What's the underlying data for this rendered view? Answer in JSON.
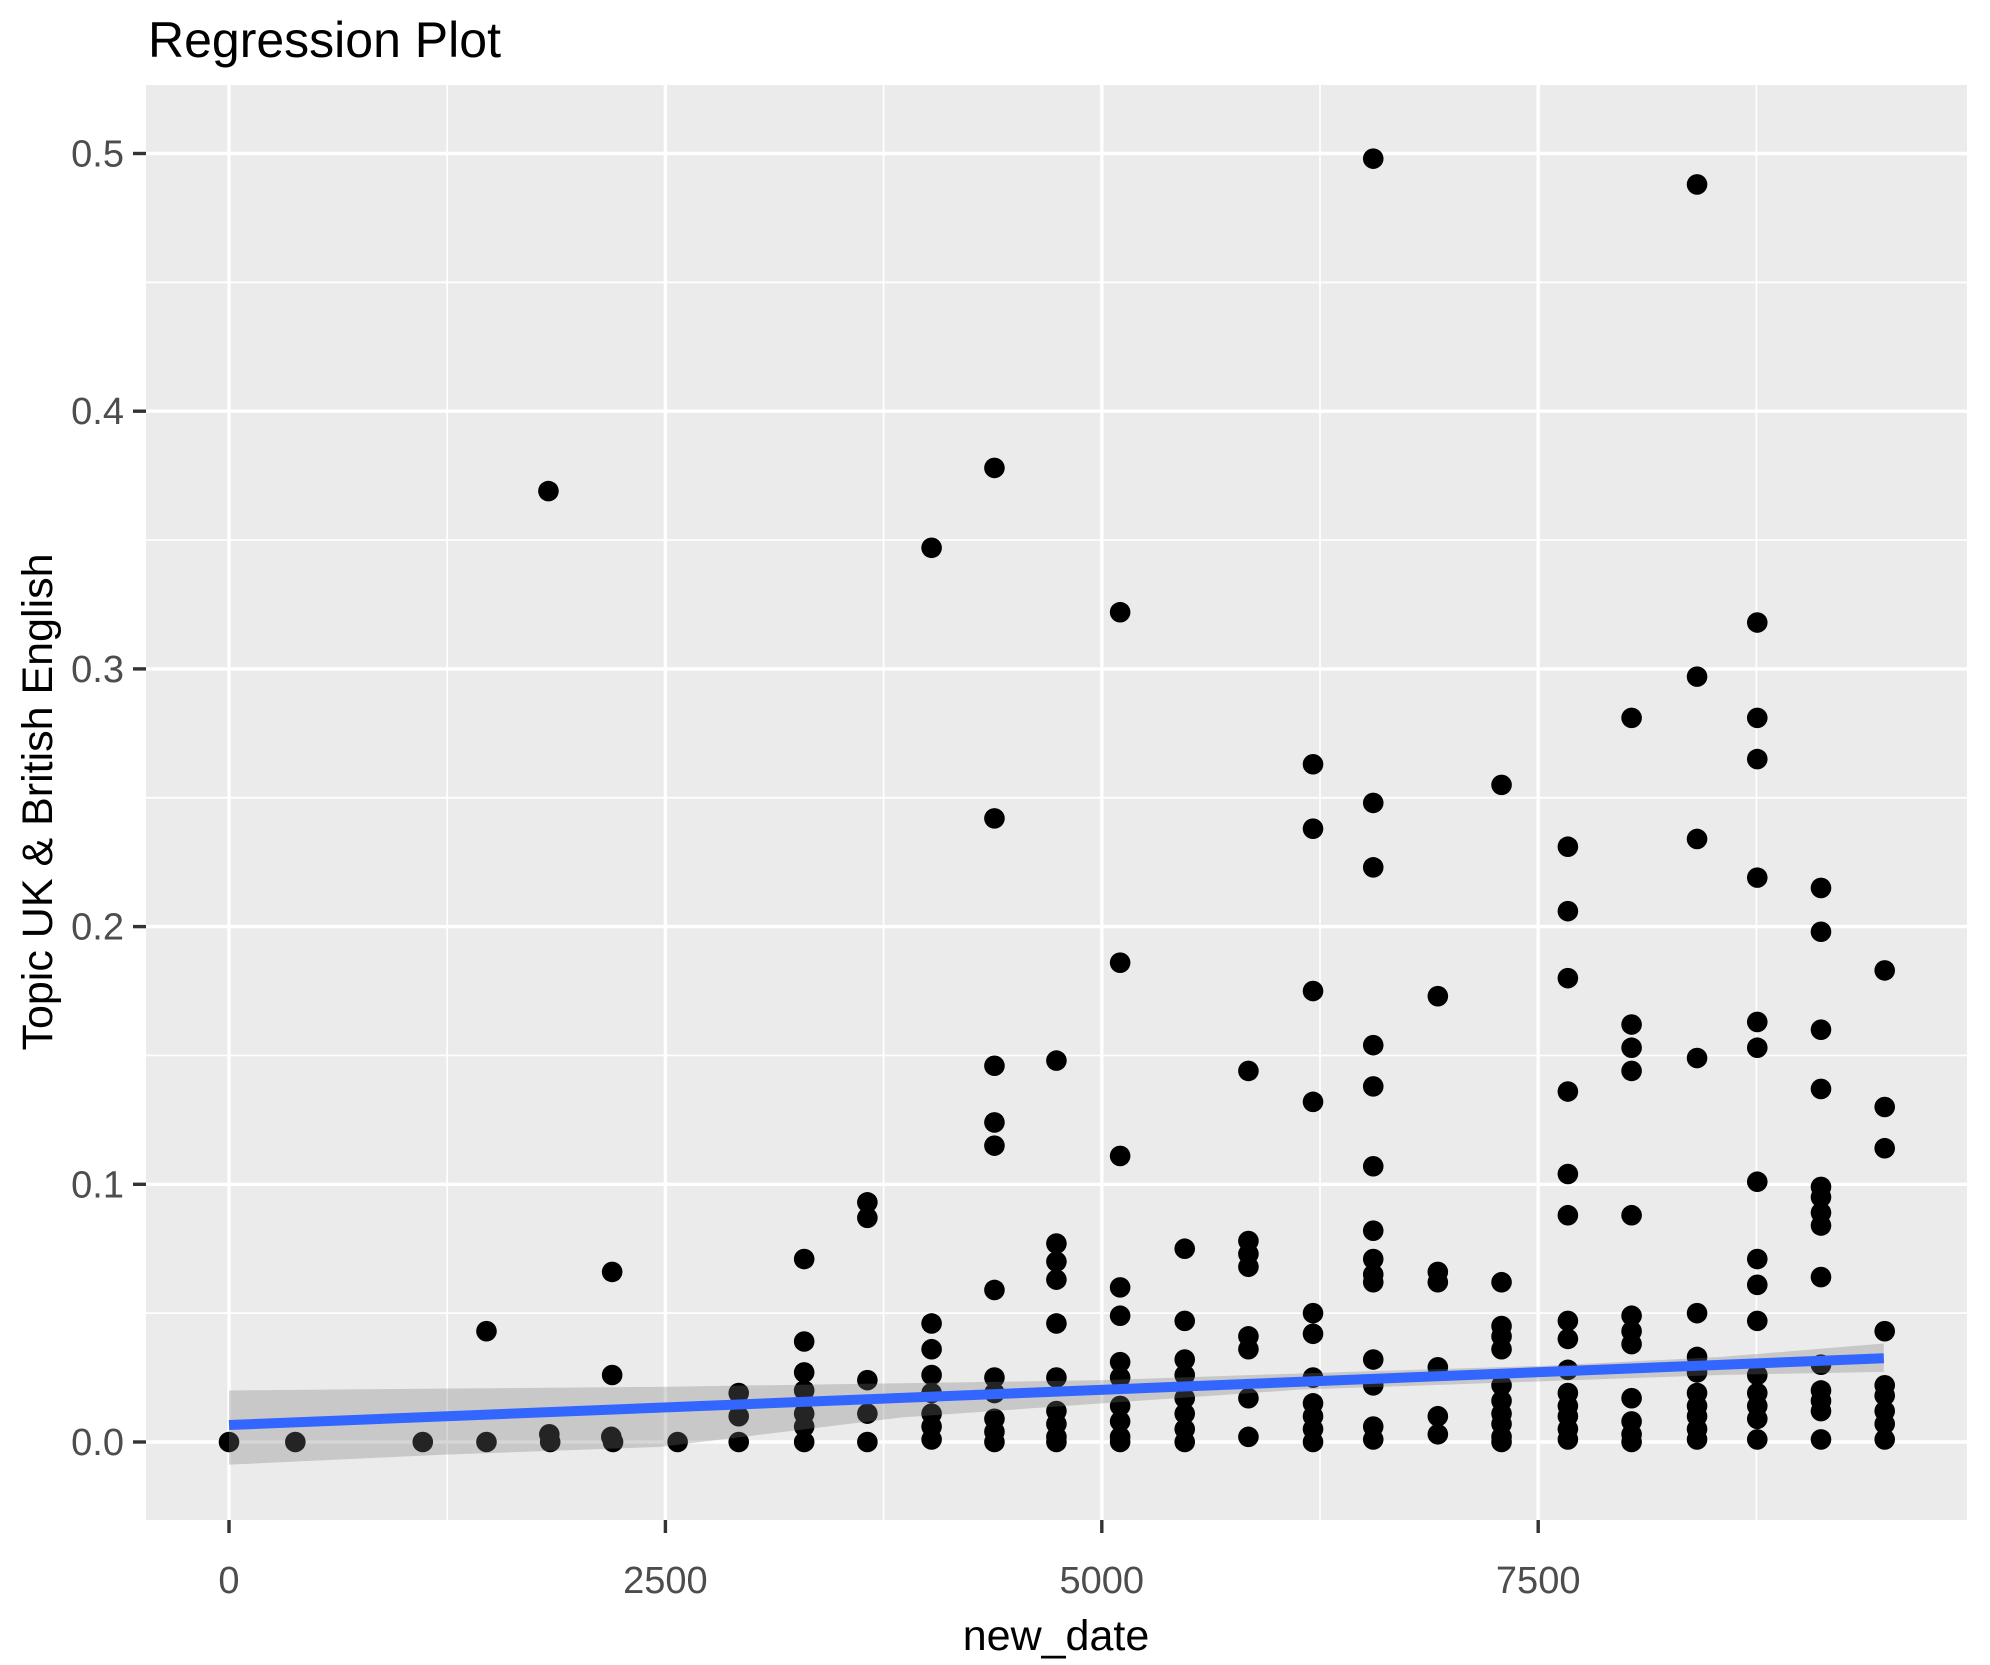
{
  "chart_data": {
    "type": "scatter",
    "title": "Regression Plot",
    "xlabel": "new_date",
    "ylabel": "Topic UK & British English",
    "x_ticks": [
      0,
      2500,
      5000,
      7500
    ],
    "x_tick_labels": [
      "0",
      "2500",
      "5000",
      "7500"
    ],
    "x_minor": [
      1250,
      3750,
      6250,
      8750
    ],
    "y_ticks": [
      0.0,
      0.1,
      0.2,
      0.3,
      0.4,
      0.5
    ],
    "y_tick_labels": [
      "0.0",
      "0.1",
      "0.2",
      "0.3",
      "0.4",
      "0.5"
    ],
    "y_minor": [
      0.05,
      0.15,
      0.25,
      0.35,
      0.45
    ],
    "xlim": [
      -474,
      9954
    ],
    "ylim": [
      -0.0287,
      0.5266
    ],
    "grid": true,
    "legend": "none",
    "colors": {
      "point": "#000000",
      "regression_line": "#3366FF",
      "ci_band": "rgba(120,120,120,0.30)",
      "panel_background": "#EBEBEB",
      "gridline": "#FFFFFF",
      "tick_mark": "#333333",
      "tick_text": "#4D4D4D"
    },
    "regression_line": {
      "x": [
        0,
        9480
      ],
      "y": [
        0.0066,
        0.0325
      ]
    },
    "ci_band": {
      "top": [
        [
          0,
          0.02
        ],
        [
          1200,
          0.0207
        ],
        [
          2470,
          0.0214
        ],
        [
          3850,
          0.0228
        ],
        [
          5000,
          0.024
        ],
        [
          6130,
          0.0266
        ],
        [
          7590,
          0.0297
        ],
        [
          8540,
          0.033
        ],
        [
          9480,
          0.0382
        ]
      ],
      "bottom": [
        [
          0,
          -0.0088
        ],
        [
          1200,
          -0.005
        ],
        [
          2470,
          -0.0019
        ],
        [
          3850,
          0.0095
        ],
        [
          5000,
          0.015
        ],
        [
          6130,
          0.0203
        ],
        [
          7590,
          0.0237
        ],
        [
          8540,
          0.026
        ],
        [
          9480,
          0.0272
        ]
      ]
    },
    "points": [
      [
        0,
        0
      ],
      [
        380,
        0
      ],
      [
        1110,
        0
      ],
      [
        1475,
        0.043
      ],
      [
        1475,
        0
      ],
      [
        1830,
        0.369
      ],
      [
        1835,
        0.003
      ],
      [
        1840,
        0
      ],
      [
        2195,
        0.066
      ],
      [
        2195,
        0.026
      ],
      [
        2190,
        0.002
      ],
      [
        2200,
        0
      ],
      [
        2570,
        0
      ],
      [
        2920,
        0.019
      ],
      [
        2920,
        0.01
      ],
      [
        2920,
        0
      ],
      [
        3295,
        0.071
      ],
      [
        3295,
        0.039
      ],
      [
        3295,
        0.027
      ],
      [
        3295,
        0.02
      ],
      [
        3295,
        0.011
      ],
      [
        3295,
        0.006
      ],
      [
        3295,
        0
      ],
      [
        3657,
        0.093
      ],
      [
        3657,
        0.087
      ],
      [
        3657,
        0.024
      ],
      [
        3657,
        0.011
      ],
      [
        3657,
        0
      ],
      [
        4025,
        0.347
      ],
      [
        4025,
        0.046
      ],
      [
        4025,
        0.036
      ],
      [
        4025,
        0.026
      ],
      [
        4025,
        0.019
      ],
      [
        4025,
        0.011
      ],
      [
        4025,
        0.006
      ],
      [
        4025,
        0.001
      ],
      [
        4385,
        0.378
      ],
      [
        4385,
        0.242
      ],
      [
        4385,
        0.146
      ],
      [
        4385,
        0.124
      ],
      [
        4385,
        0.115
      ],
      [
        4385,
        0.059
      ],
      [
        4385,
        0.025
      ],
      [
        4385,
        0.019
      ],
      [
        4385,
        0.009
      ],
      [
        4385,
        0.004
      ],
      [
        4385,
        0
      ],
      [
        4740,
        0.148
      ],
      [
        4740,
        0.077
      ],
      [
        4740,
        0.07
      ],
      [
        4740,
        0.063
      ],
      [
        4740,
        0.046
      ],
      [
        4740,
        0.025
      ],
      [
        4740,
        0.012
      ],
      [
        4740,
        0.007
      ],
      [
        4740,
        0.002
      ],
      [
        4740,
        0
      ],
      [
        5105,
        0.322
      ],
      [
        5105,
        0.186
      ],
      [
        5105,
        0.111
      ],
      [
        5105,
        0.06
      ],
      [
        5105,
        0.049
      ],
      [
        5105,
        0.031
      ],
      [
        5105,
        0.025
      ],
      [
        5105,
        0.014
      ],
      [
        5105,
        0.008
      ],
      [
        5105,
        0.002
      ],
      [
        5105,
        0
      ],
      [
        5475,
        0.075
      ],
      [
        5475,
        0.047
      ],
      [
        5475,
        0.032
      ],
      [
        5475,
        0.026
      ],
      [
        5475,
        0.017
      ],
      [
        5475,
        0.011
      ],
      [
        5475,
        0.005
      ],
      [
        5475,
        0
      ],
      [
        5840,
        0.144
      ],
      [
        5840,
        0.078
      ],
      [
        5840,
        0.073
      ],
      [
        5840,
        0.068
      ],
      [
        5840,
        0.041
      ],
      [
        5840,
        0.036
      ],
      [
        5840,
        0.017
      ],
      [
        5840,
        0.002
      ],
      [
        6210,
        0.263
      ],
      [
        6210,
        0.238
      ],
      [
        6210,
        0.175
      ],
      [
        6210,
        0.132
      ],
      [
        6210,
        0.05
      ],
      [
        6210,
        0.042
      ],
      [
        6210,
        0.025
      ],
      [
        6210,
        0.015
      ],
      [
        6210,
        0.01
      ],
      [
        6210,
        0.005
      ],
      [
        6210,
        0
      ],
      [
        6555,
        0.498
      ],
      [
        6555,
        0.248
      ],
      [
        6555,
        0.223
      ],
      [
        6555,
        0.154
      ],
      [
        6555,
        0.138
      ],
      [
        6555,
        0.107
      ],
      [
        6555,
        0.082
      ],
      [
        6555,
        0.071
      ],
      [
        6555,
        0.065
      ],
      [
        6555,
        0.062
      ],
      [
        6555,
        0.032
      ],
      [
        6555,
        0.022
      ],
      [
        6555,
        0.006
      ],
      [
        6555,
        0.001
      ],
      [
        6925,
        0.173
      ],
      [
        6925,
        0.066
      ],
      [
        6925,
        0.062
      ],
      [
        6925,
        0.029
      ],
      [
        6925,
        0.01
      ],
      [
        6925,
        0.003
      ],
      [
        7290,
        0.255
      ],
      [
        7290,
        0.062
      ],
      [
        7290,
        0.045
      ],
      [
        7290,
        0.041
      ],
      [
        7290,
        0.036
      ],
      [
        7290,
        0.022
      ],
      [
        7290,
        0.016
      ],
      [
        7290,
        0.011
      ],
      [
        7290,
        0.007
      ],
      [
        7290,
        0.002
      ],
      [
        7290,
        0
      ],
      [
        7670,
        0.231
      ],
      [
        7670,
        0.206
      ],
      [
        7670,
        0.18
      ],
      [
        7670,
        0.136
      ],
      [
        7670,
        0.104
      ],
      [
        7670,
        0.088
      ],
      [
        7670,
        0.047
      ],
      [
        7670,
        0.04
      ],
      [
        7670,
        0.028
      ],
      [
        7670,
        0.019
      ],
      [
        7670,
        0.014
      ],
      [
        7670,
        0.01
      ],
      [
        7670,
        0.005
      ],
      [
        7670,
        0.001
      ],
      [
        8035,
        0.281
      ],
      [
        8035,
        0.162
      ],
      [
        8035,
        0.153
      ],
      [
        8035,
        0.144
      ],
      [
        8035,
        0.088
      ],
      [
        8035,
        0.049
      ],
      [
        8035,
        0.043
      ],
      [
        8035,
        0.038
      ],
      [
        8035,
        0.017
      ],
      [
        8035,
        0.008
      ],
      [
        8035,
        0.003
      ],
      [
        8035,
        0
      ],
      [
        8410,
        0.488
      ],
      [
        8410,
        0.297
      ],
      [
        8410,
        0.234
      ],
      [
        8410,
        0.149
      ],
      [
        8410,
        0.05
      ],
      [
        8410,
        0.033
      ],
      [
        8410,
        0.027
      ],
      [
        8410,
        0.019
      ],
      [
        8410,
        0.014
      ],
      [
        8410,
        0.01
      ],
      [
        8410,
        0.005
      ],
      [
        8410,
        0.001
      ],
      [
        8755,
        0.318
      ],
      [
        8755,
        0.281
      ],
      [
        8755,
        0.265
      ],
      [
        8755,
        0.219
      ],
      [
        8755,
        0.163
      ],
      [
        8755,
        0.153
      ],
      [
        8755,
        0.101
      ],
      [
        8755,
        0.071
      ],
      [
        8755,
        0.061
      ],
      [
        8755,
        0.047
      ],
      [
        8755,
        0.026
      ],
      [
        8755,
        0.019
      ],
      [
        8755,
        0.014
      ],
      [
        8755,
        0.009
      ],
      [
        8755,
        0.001
      ],
      [
        9120,
        0.215
      ],
      [
        9120,
        0.198
      ],
      [
        9120,
        0.16
      ],
      [
        9120,
        0.137
      ],
      [
        9120,
        0.099
      ],
      [
        9120,
        0.095
      ],
      [
        9120,
        0.089
      ],
      [
        9120,
        0.084
      ],
      [
        9120,
        0.064
      ],
      [
        9120,
        0.03
      ],
      [
        9120,
        0.02
      ],
      [
        9120,
        0.016
      ],
      [
        9120,
        0.012
      ],
      [
        9120,
        0.001
      ],
      [
        9485,
        0.183
      ],
      [
        9485,
        0.13
      ],
      [
        9485,
        0.114
      ],
      [
        9485,
        0.043
      ],
      [
        9485,
        0.022
      ],
      [
        9485,
        0.018
      ],
      [
        9485,
        0.012
      ],
      [
        9485,
        0.007
      ],
      [
        9485,
        0.001
      ]
    ]
  }
}
